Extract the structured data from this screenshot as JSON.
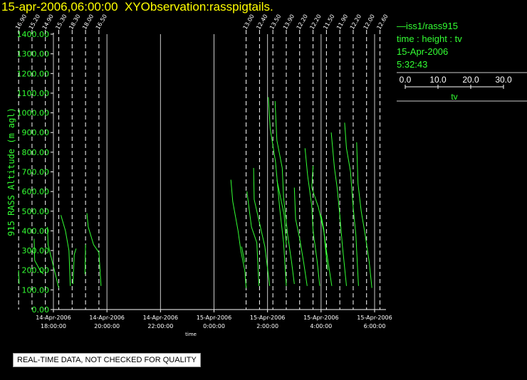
{
  "header": {
    "title": "15-apr-2006,06:00:00  XYObservation:rasspigtails."
  },
  "legend": {
    "series": "iss1/rass915",
    "axes": "time : height : tv",
    "date": "15-Apr-2006",
    "time": "5:32:43",
    "scale_ticks": [
      "0.0",
      "10.0",
      "20.0",
      "30.0"
    ],
    "scale_label": "tv"
  },
  "footer": {
    "qc_note": "REAL-TIME DATA, NOT CHECKED FOR QUALITY"
  },
  "colors": {
    "title": "#ffff00",
    "data": "#33ff33",
    "axis": "#ffffff",
    "background": "#000000"
  },
  "chart_data": {
    "type": "line",
    "title": "",
    "ylabel": "915 RASS Altitude (m agl)",
    "xlabel": "time",
    "ylim": [
      0,
      1400
    ],
    "yticks": [
      "0.00",
      "100.00",
      "200.00",
      "300.00",
      "400.00",
      "500.00",
      "600.00",
      "700.00",
      "800.00",
      "900.00",
      "1000.00",
      "1100.00",
      "1200.00",
      "1300.00",
      "1400.00"
    ],
    "xlim_hours": [
      16.667,
      30.3
    ],
    "xticks": [
      {
        "hour": 18,
        "date": "14-Apr-2006",
        "time": "18:00:00"
      },
      {
        "hour": 20,
        "date": "14-Apr-2006",
        "time": "20:00:00"
      },
      {
        "hour": 22,
        "date": "14-Apr-2006",
        "time": "22:00:00"
      },
      {
        "hour": 24,
        "date": "15-Apr-2006",
        "time": "0:00:00"
      },
      {
        "hour": 26,
        "date": "15-Apr-2006",
        "time": "2:00:00"
      },
      {
        "hour": 28,
        "date": "15-Apr-2006",
        "time": "4:00:00"
      },
      {
        "hour": 30,
        "date": "15-Apr-2006",
        "time": "6:00:00"
      }
    ],
    "reference_lines": [
      {
        "hour": 16.7,
        "label": "16.90"
      },
      {
        "hour": 17.2,
        "label": "15.20"
      },
      {
        "hour": 17.7,
        "label": "14.90"
      },
      {
        "hour": 18.2,
        "label": "15.30"
      },
      {
        "hour": 18.7,
        "label": "18.30"
      },
      {
        "hour": 19.2,
        "label": "18.00"
      },
      {
        "hour": 19.7,
        "label": "16.50"
      },
      {
        "hour": 25.2,
        "label": "13.00"
      },
      {
        "hour": 25.7,
        "label": "12.40"
      },
      {
        "hour": 26.2,
        "label": "13.50"
      },
      {
        "hour": 26.7,
        "label": "13.90"
      },
      {
        "hour": 27.2,
        "label": "12.20"
      },
      {
        "hour": 27.7,
        "label": "12.20"
      },
      {
        "hour": 28.2,
        "label": "11.50"
      },
      {
        "hour": 28.7,
        "label": "11.90"
      },
      {
        "hour": 29.2,
        "label": "12.20"
      },
      {
        "hour": 29.7,
        "label": "12.00"
      },
      {
        "hour": 30.2,
        "label": "12.60"
      }
    ],
    "series": [
      {
        "points": [
          [
            16.72,
            130
          ],
          [
            16.7,
            200
          ]
        ]
      },
      {
        "points": [
          [
            17.28,
            360
          ],
          [
            17.3,
            250
          ],
          [
            17.5,
            200
          ],
          [
            17.63,
            180
          ]
        ]
      },
      {
        "points": [
          [
            17.78,
            420
          ],
          [
            17.8,
            330
          ],
          [
            18.0,
            220
          ],
          [
            18.2,
            110
          ]
        ]
      },
      {
        "points": [
          [
            18.28,
            480
          ],
          [
            18.45,
            400
          ],
          [
            18.58,
            300
          ],
          [
            18.63,
            120
          ]
        ]
      },
      {
        "points": [
          [
            18.73,
            130
          ],
          [
            18.78,
            280
          ],
          [
            18.85,
            310
          ]
        ]
      },
      {
        "points": [
          [
            19.18,
            180
          ],
          [
            19.2,
            330
          ]
        ]
      },
      {
        "points": [
          [
            19.25,
            490
          ],
          [
            19.3,
            420
          ],
          [
            19.5,
            330
          ],
          [
            19.7,
            290
          ],
          [
            19.78,
            120
          ]
        ]
      },
      {
        "points": [
          [
            24.63,
            660
          ],
          [
            24.7,
            550
          ],
          [
            24.9,
            400
          ],
          [
            25.0,
            300
          ],
          [
            25.15,
            200
          ],
          [
            25.2,
            110
          ]
        ]
      },
      {
        "points": [
          [
            25.03,
            320
          ],
          [
            25.15,
            240
          ]
        ]
      },
      {
        "points": [
          [
            25.23,
            600
          ],
          [
            25.4,
            420
          ],
          [
            25.6,
            340
          ],
          [
            25.68,
            120
          ]
        ]
      },
      {
        "points": [
          [
            25.48,
            720
          ],
          [
            25.5,
            560
          ],
          [
            25.7,
            440
          ],
          [
            25.9,
            320
          ],
          [
            26.08,
            120
          ]
        ]
      },
      {
        "points": [
          [
            26.03,
            1080
          ],
          [
            26.1,
            920
          ],
          [
            26.3,
            750
          ],
          [
            26.45,
            520
          ],
          [
            26.6,
            340
          ],
          [
            26.7,
            120
          ]
        ]
      },
      {
        "points": [
          [
            26.28,
            1060
          ],
          [
            26.35,
            860
          ],
          [
            26.55,
            720
          ],
          [
            26.6,
            570
          ],
          [
            26.75,
            380
          ],
          [
            26.9,
            240
          ],
          [
            27.0,
            130
          ]
        ]
      },
      {
        "points": [
          [
            26.35,
            660
          ],
          [
            26.5,
            560
          ],
          [
            26.62,
            480
          ],
          [
            26.7,
            330
          ]
        ]
      },
      {
        "points": [
          [
            27.0,
            620
          ],
          [
            27.05,
            460
          ],
          [
            27.2,
            360
          ],
          [
            27.35,
            240
          ],
          [
            27.48,
            120
          ]
        ]
      },
      {
        "points": [
          [
            27.4,
            820
          ],
          [
            27.5,
            680
          ],
          [
            27.65,
            530
          ],
          [
            27.7,
            400
          ],
          [
            27.85,
            250
          ],
          [
            27.95,
            120
          ]
        ]
      },
      {
        "points": [
          [
            27.7,
            730
          ],
          [
            27.65,
            620
          ],
          [
            27.9,
            520
          ],
          [
            28.1,
            400
          ],
          [
            28.2,
            300
          ],
          [
            28.4,
            120
          ]
        ]
      },
      {
        "points": [
          [
            28.0,
            480
          ],
          [
            28.1,
            410
          ],
          [
            28.15,
            330
          ],
          [
            28.25,
            200
          ]
        ]
      },
      {
        "points": [
          [
            28.38,
            900
          ],
          [
            28.5,
            720
          ],
          [
            28.6,
            620
          ],
          [
            28.7,
            480
          ],
          [
            28.8,
            320
          ],
          [
            28.95,
            120
          ]
        ]
      },
      {
        "points": [
          [
            28.88,
            950
          ],
          [
            28.95,
            820
          ],
          [
            29.1,
            700
          ],
          [
            29.2,
            520
          ],
          [
            29.3,
            380
          ],
          [
            29.4,
            120
          ]
        ]
      },
      {
        "points": [
          [
            29.33,
            850
          ],
          [
            29.38,
            640
          ],
          [
            29.5,
            500
          ],
          [
            29.65,
            380
          ],
          [
            29.8,
            240
          ],
          [
            29.9,
            110
          ]
        ]
      }
    ]
  }
}
